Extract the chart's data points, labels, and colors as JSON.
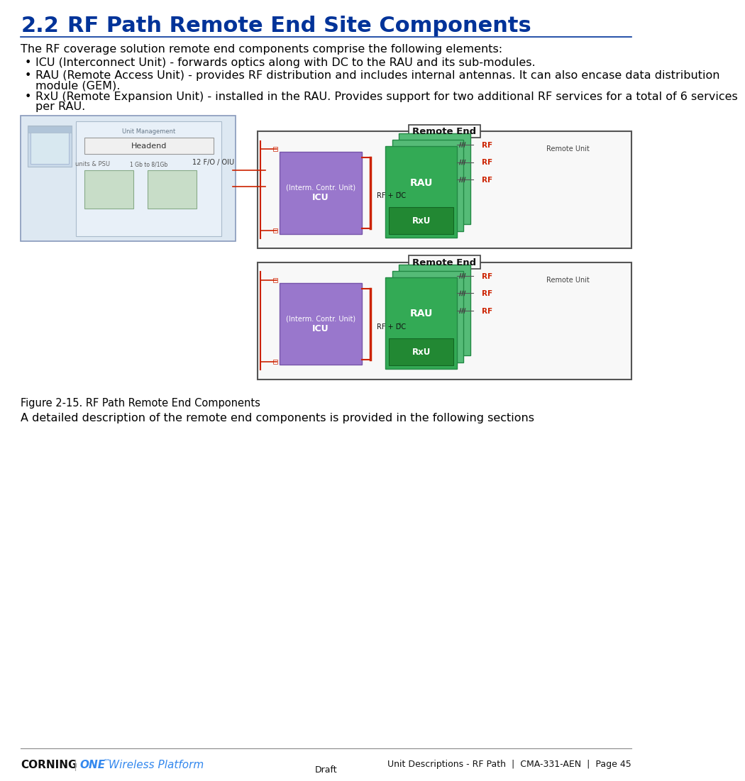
{
  "title_number": "2.2",
  "title_text": "RF Path Remote End Site Components",
  "title_color": "#003399",
  "body_text_color": "#000000",
  "intro_text": "The RF coverage solution remote end components comprise the following elements:",
  "bullet1": "ICU (Interconnect Unit) - forwards optics along with DC to the RAU and its sub-modules.",
  "bullet2_line1": "RAU (Remote Access Unit) - provides RF distribution and includes internal antennas. It can also encase data distribution",
  "bullet2_line2": "module (GEM).",
  "bullet3_line1": "RxU (Remote Expansion Unit) - installed in the RAU. Provides support for two additional RF services for a total of 6 services",
  "bullet3_line2": "per RAU.",
  "figure_caption": "Figure 2-15. RF Path Remote End Components",
  "after_figure_text": "A detailed description of the remote end components is provided in the following sections",
  "footer_draft": "Draft",
  "background_color": "#ffffff",
  "title_fontsize": 22,
  "body_fontsize": 11.5,
  "icu_fill": "#9977cc",
  "icu_edge": "#7755aa",
  "rau_fill": "#33aa55",
  "rau_edge": "#228844",
  "rau_shadow_fill": "#55bb66",
  "rxu_fill": "#33aa55",
  "rxu_edge": "#228844",
  "remote_end_fill": "#f8f8f8",
  "remote_end_edge": "#555555",
  "left_box_fill": "#dde8f2",
  "left_box_edge": "#8899bb",
  "arrow_red": "#cc2200",
  "rf_red": "#cc2200",
  "label_gray": "#555555"
}
